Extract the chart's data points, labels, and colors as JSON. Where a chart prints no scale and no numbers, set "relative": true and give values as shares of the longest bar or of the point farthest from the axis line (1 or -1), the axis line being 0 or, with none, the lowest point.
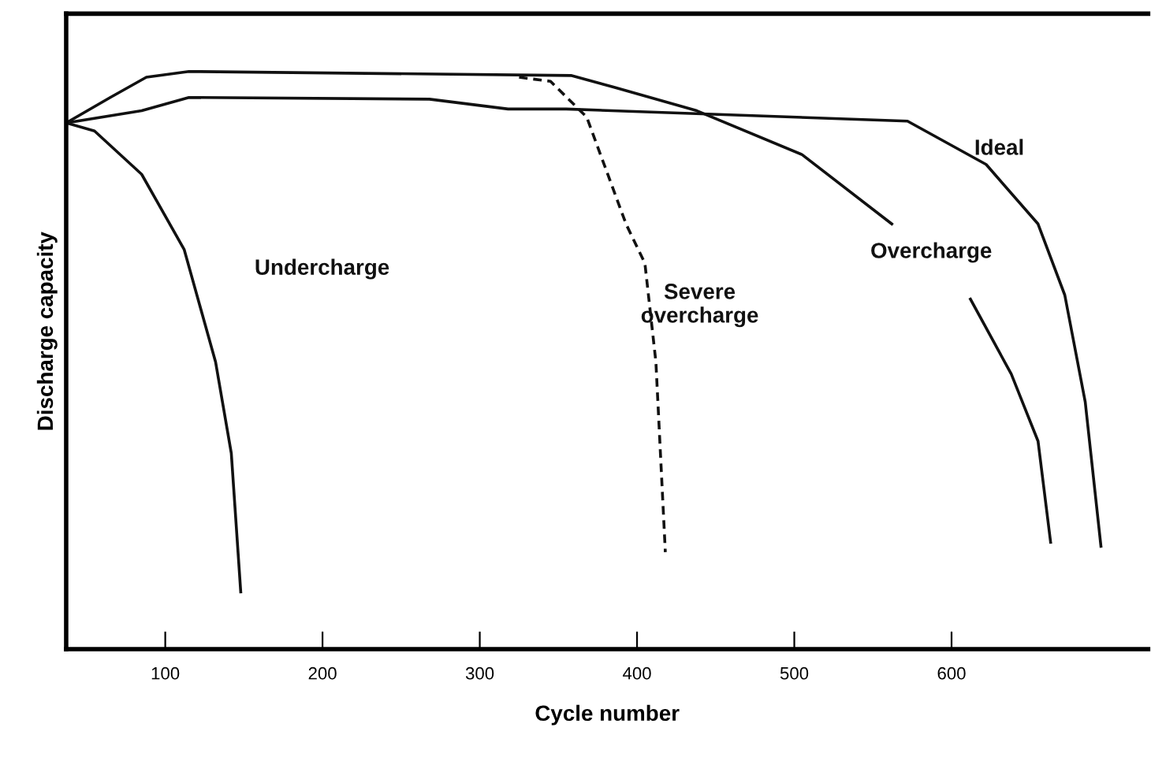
{
  "chart_data": {
    "type": "line",
    "xlabel": "Cycle number",
    "ylabel": "Discharge capacity",
    "relative": true,
    "xlim": [
      37,
      725
    ],
    "xticks": [
      100,
      200,
      300,
      400,
      500,
      600
    ],
    "grid": false,
    "marker": "none",
    "series": [
      {
        "name": "Undercharge",
        "color": "#111111",
        "line_style": "solid",
        "x": [
          37,
          55,
          85,
          112,
          132,
          142,
          148
        ],
        "values": [
          0.911,
          0.897,
          0.822,
          0.692,
          0.497,
          0.339,
          0.099
        ]
      },
      {
        "name": "Severe\novercharge",
        "color": "#111111",
        "line_style": "dashed",
        "x": [
          325,
          345,
          368,
          393,
          405,
          412,
          418
        ],
        "values": [
          0.99,
          0.983,
          0.921,
          0.736,
          0.668,
          0.497,
          0.168
        ]
      },
      {
        "name": "Overcharge",
        "color": "#111111",
        "line_style": "solid",
        "x": [
          37,
          65,
          88,
          115,
          358,
          385,
          438,
          505,
          562,
          587,
          612,
          638,
          655,
          663
        ],
        "values": [
          0.911,
          0.955,
          0.99,
          1.0,
          0.993,
          0.973,
          0.932,
          0.856,
          0.736,
          null,
          0.606,
          0.476,
          0.36,
          0.185
        ]
      },
      {
        "name": "Ideal",
        "color": "#111111",
        "line_style": "solid",
        "x": [
          37,
          85,
          115,
          268,
          318,
          355,
          572,
          622,
          655,
          672,
          685,
          695
        ],
        "values": [
          0.911,
          0.932,
          0.955,
          0.952,
          0.935,
          0.935,
          0.914,
          0.839,
          0.736,
          0.613,
          0.428,
          0.178
        ]
      }
    ]
  }
}
